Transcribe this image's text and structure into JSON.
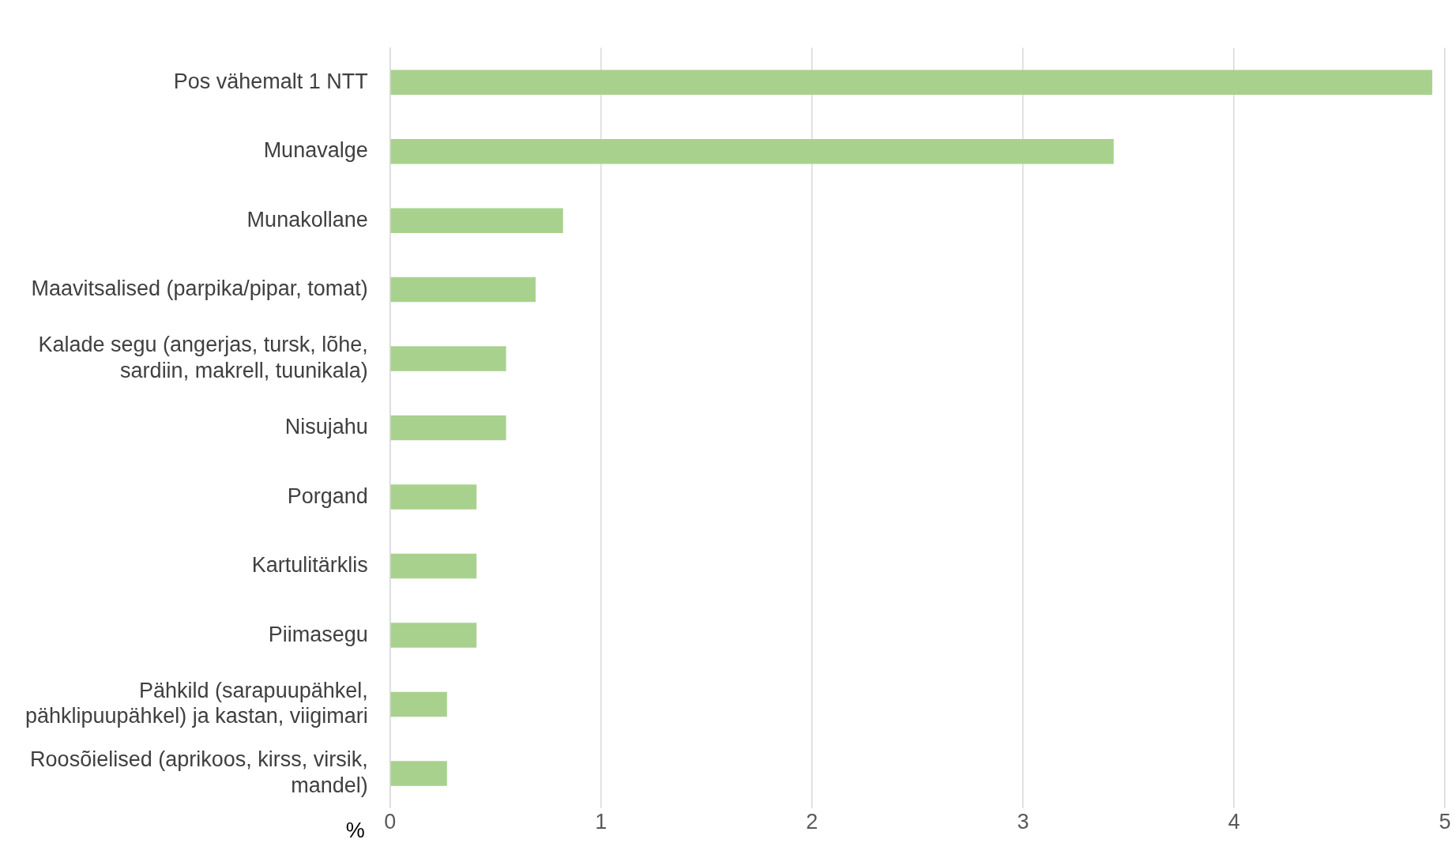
{
  "chart_data": {
    "type": "bar",
    "orientation": "horizontal",
    "xlabel": "%",
    "categories": [
      "Pos vähemalt 1 NTT",
      "Munavalge",
      "Munakollane",
      "Maavitsalised (parpika/pipar, tomat)",
      "Kalade segu (angerjas, tursk, lõhe, sardiin, makrell, tuunikala)",
      "Nisujahu",
      "Porgand",
      "Kartulitärklis",
      "Piimasegu",
      "Pähkild (sarapuupähkel, pähklipuupähkel) ja kastan, viigimari",
      "Roosõielised (aprikoos, kirss, virsik, mandel)"
    ],
    "values": [
      4.94,
      3.43,
      0.82,
      0.69,
      0.55,
      0.55,
      0.41,
      0.41,
      0.41,
      0.27,
      0.27
    ],
    "color": "#a9d18e",
    "xlim": [
      0,
      5
    ],
    "xticks": [
      0,
      1,
      2,
      3,
      4,
      5
    ],
    "grid": "x",
    "legend": false
  }
}
